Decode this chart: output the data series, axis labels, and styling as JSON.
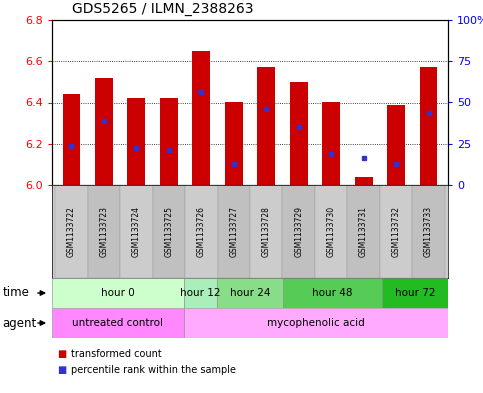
{
  "title": "GDS5265 / ILMN_2388263",
  "samples": [
    "GSM1133722",
    "GSM1133723",
    "GSM1133724",
    "GSM1133725",
    "GSM1133726",
    "GSM1133727",
    "GSM1133728",
    "GSM1133729",
    "GSM1133730",
    "GSM1133731",
    "GSM1133732",
    "GSM1133733"
  ],
  "bar_tops": [
    6.44,
    6.52,
    6.42,
    6.42,
    6.65,
    6.4,
    6.57,
    6.5,
    6.4,
    6.04,
    6.39,
    6.57
  ],
  "bar_bottoms": [
    6.0,
    6.0,
    6.0,
    6.0,
    6.0,
    6.0,
    6.0,
    6.0,
    6.0,
    6.0,
    6.0,
    6.0
  ],
  "blue_dots": [
    6.19,
    6.31,
    6.18,
    6.17,
    6.45,
    6.1,
    6.37,
    6.28,
    6.15,
    6.13,
    6.1,
    6.35
  ],
  "ylim": [
    6.0,
    6.8
  ],
  "yticks_left": [
    6.0,
    6.2,
    6.4,
    6.6,
    6.8
  ],
  "yticks_right": [
    0,
    25,
    50,
    75,
    100
  ],
  "ytick_right_labels": [
    "0",
    "25",
    "50",
    "75",
    "100%"
  ],
  "bar_color": "#cc0000",
  "dot_color": "#3333cc",
  "time_groups": [
    {
      "label": "hour 0",
      "start": 0,
      "end": 4,
      "color": "#ccffcc"
    },
    {
      "label": "hour 12",
      "start": 4,
      "end": 5,
      "color": "#aaeebb"
    },
    {
      "label": "hour 24",
      "start": 5,
      "end": 7,
      "color": "#88dd88"
    },
    {
      "label": "hour 48",
      "start": 7,
      "end": 10,
      "color": "#55cc55"
    },
    {
      "label": "hour 72",
      "start": 10,
      "end": 12,
      "color": "#22bb22"
    }
  ],
  "agent_groups": [
    {
      "label": "untreated control",
      "start": 0,
      "end": 4,
      "color": "#ff88ff"
    },
    {
      "label": "mycophenolic acid",
      "start": 4,
      "end": 12,
      "color": "#ffaaff"
    }
  ],
  "legend_items": [
    {
      "label": "transformed count",
      "color": "#cc0000"
    },
    {
      "label": "percentile rank within the sample",
      "color": "#3333cc"
    }
  ],
  "row_label_time": "time",
  "row_label_agent": "agent",
  "bg_color": "#ffffff"
}
